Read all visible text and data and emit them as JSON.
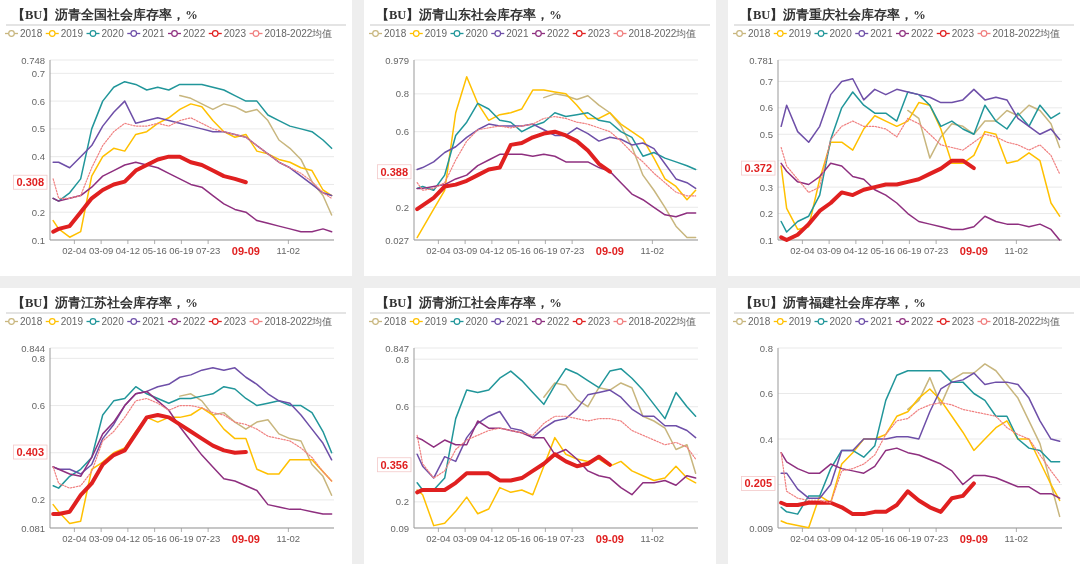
{
  "chart_data": [
    {
      "type": "line",
      "title": "【BU】沥青全国社会库存率，%",
      "legend": "top",
      "grid": "y",
      "x": [
        "--01-08",
        "--01-15",
        "--01-29",
        "--02-12",
        "--02-26",
        "--03-11",
        "--03-25",
        "--04-08",
        "--04-22",
        "--05-06",
        "--05-20",
        "--06-03",
        "--06-17",
        "--07-01",
        "--07-15",
        "--07-29",
        "--08-12",
        "--08-26",
        "--09-09",
        "--09-23",
        "--10-07",
        "--10-21",
        "--11-04",
        "--11-18",
        "--12-02",
        "--12-16",
        "--12-27"
      ],
      "xlim": [
        "--01-04",
        "--12-30"
      ],
      "xticks": [
        {
          "value": "--02-04",
          "label": "02-04"
        },
        {
          "value": "--03-09",
          "label": "03-09"
        },
        {
          "value": "--04-12",
          "label": "04-12"
        },
        {
          "value": "--05-16",
          "label": "05-16"
        },
        {
          "value": "--06-19",
          "label": "06-19"
        },
        {
          "value": "--07-23",
          "label": "07-23"
        },
        {
          "value": "--11-02",
          "label": "11-02"
        }
      ],
      "ylim": [
        0.1,
        0.748
      ],
      "yticks": [
        0.1,
        0.2,
        {
          "value": 0.3,
          "label": null
        },
        0.4,
        0.5,
        0.6,
        0.7,
        0.748
      ],
      "series": [
        {
          "name": "2018",
          "color": "#c8b67e",
          "values": [
            null,
            null,
            null,
            null,
            null,
            null,
            null,
            null,
            null,
            null,
            null,
            null,
            0.62,
            0.61,
            0.59,
            0.57,
            0.59,
            0.58,
            0.56,
            0.57,
            0.53,
            0.46,
            0.43,
            0.39,
            0.31,
            0.26,
            0.19
          ]
        },
        {
          "name": "2019",
          "color": "#ffc000",
          "values": [
            0.17,
            0.14,
            0.11,
            0.13,
            0.33,
            0.4,
            0.43,
            0.42,
            0.48,
            0.49,
            0.52,
            0.54,
            0.57,
            0.59,
            0.58,
            0.53,
            0.49,
            0.47,
            0.48,
            0.42,
            0.41,
            0.39,
            0.38,
            0.36,
            0.35,
            0.28,
            0.26
          ]
        },
        {
          "name": "2020",
          "color": "#21969a",
          "values": [
            0.25,
            0.24,
            0.27,
            0.32,
            0.5,
            0.6,
            0.65,
            0.67,
            0.66,
            0.64,
            0.65,
            0.64,
            0.66,
            0.66,
            0.66,
            0.65,
            0.64,
            0.62,
            0.6,
            0.6,
            0.55,
            0.53,
            0.51,
            0.5,
            0.49,
            0.46,
            0.43
          ]
        },
        {
          "name": "2021",
          "color": "#6e4fa8",
          "values": [
            0.38,
            0.38,
            0.36,
            0.4,
            0.44,
            0.51,
            0.56,
            0.6,
            0.52,
            0.53,
            0.54,
            0.53,
            0.52,
            0.51,
            0.5,
            0.49,
            0.49,
            0.48,
            0.47,
            0.44,
            0.41,
            0.38,
            0.36,
            0.33,
            0.3,
            0.27,
            0.26
          ]
        },
        {
          "name": "2022",
          "color": "#8e2f7f",
          "values": [
            0.25,
            0.24,
            0.25,
            0.26,
            0.29,
            0.33,
            0.35,
            0.37,
            0.38,
            0.37,
            0.36,
            0.34,
            0.32,
            0.3,
            0.29,
            0.26,
            0.23,
            0.21,
            0.2,
            0.17,
            0.16,
            0.15,
            0.14,
            0.13,
            0.13,
            0.14,
            0.13
          ]
        },
        {
          "name": "2023",
          "color": "#e02020",
          "values": [
            0.13,
            0.14,
            0.15,
            0.2,
            0.25,
            0.28,
            0.3,
            0.31,
            0.35,
            0.37,
            0.39,
            0.4,
            0.4,
            0.38,
            0.37,
            0.35,
            0.33,
            0.32,
            0.308,
            null,
            null,
            null,
            null,
            null,
            null,
            null,
            null
          ]
        },
        {
          "name": "2018-2022均值",
          "color": "#f08080",
          "line_style": "dotted",
          "values": [
            0.32,
            0.25,
            0.25,
            0.26,
            0.36,
            0.44,
            0.49,
            0.52,
            0.51,
            0.51,
            0.52,
            0.51,
            0.53,
            0.54,
            0.52,
            0.5,
            0.49,
            0.48,
            0.47,
            0.44,
            0.41,
            0.38,
            0.36,
            0.34,
            0.31,
            0.27,
            0.25
          ]
        }
      ],
      "annotations": [
        "0.308",
        "09-09"
      ]
    },
    {
      "type": "line",
      "title": "【BU】沥青山东社会库存率，%",
      "legend": "top",
      "grid": "y",
      "x": [
        "--01-08",
        "--01-15",
        "--01-29",
        "--02-12",
        "--02-26",
        "--03-11",
        "--03-25",
        "--04-08",
        "--04-22",
        "--05-06",
        "--05-20",
        "--06-03",
        "--06-17",
        "--07-01",
        "--07-15",
        "--07-29",
        "--08-12",
        "--08-26",
        "--09-09",
        "--09-23",
        "--10-07",
        "--10-21",
        "--11-04",
        "--11-18",
        "--12-02",
        "--12-16",
        "--12-27"
      ],
      "xlim": [
        "--01-04",
        "--12-30"
      ],
      "xticks": [
        {
          "value": "--02-04",
          "label": "02-04"
        },
        {
          "value": "--03-09",
          "label": "03-09"
        },
        {
          "value": "--04-12",
          "label": "04-12"
        },
        {
          "value": "--05-16",
          "label": "05-16"
        },
        {
          "value": "--06-19",
          "label": "06-19"
        },
        {
          "value": "--07-23",
          "label": "07-23"
        },
        {
          "value": "--11-02",
          "label": "11-02"
        }
      ],
      "ylim": [
        0.027,
        0.979
      ],
      "yticks": [
        0.027,
        0.2,
        {
          "value": 0.4,
          "label": null
        },
        0.6,
        0.8,
        0.979
      ],
      "series": [
        {
          "name": "2018",
          "color": "#c8b67e",
          "values": [
            null,
            null,
            null,
            null,
            null,
            null,
            null,
            null,
            null,
            null,
            null,
            null,
            0.78,
            0.8,
            0.79,
            0.77,
            0.79,
            0.74,
            0.7,
            0.63,
            0.52,
            0.37,
            0.29,
            0.2,
            0.1,
            0.04,
            0.04
          ]
        },
        {
          "name": "2019",
          "color": "#ffc000",
          "values": [
            0.04,
            0.09,
            0.19,
            0.29,
            0.7,
            0.89,
            0.75,
            0.66,
            0.69,
            0.7,
            0.72,
            0.82,
            0.82,
            0.81,
            0.8,
            0.74,
            0.67,
            0.67,
            0.7,
            0.64,
            0.6,
            0.56,
            0.46,
            0.35,
            0.31,
            0.24,
            0.29
          ]
        },
        {
          "name": "2020",
          "color": "#21969a",
          "values": [
            0.3,
            0.31,
            0.29,
            0.37,
            0.58,
            0.65,
            0.75,
            0.72,
            0.66,
            0.65,
            0.6,
            0.63,
            0.65,
            0.7,
            0.68,
            0.69,
            0.7,
            0.66,
            0.65,
            0.6,
            0.57,
            0.47,
            0.49,
            0.46,
            0.44,
            0.42,
            0.4
          ]
        },
        {
          "name": "2021",
          "color": "#6e4fa8",
          "values": [
            0.4,
            0.41,
            0.44,
            0.49,
            0.52,
            0.57,
            0.61,
            0.64,
            0.63,
            0.63,
            0.63,
            0.64,
            0.61,
            0.58,
            0.58,
            0.62,
            0.59,
            0.55,
            0.57,
            0.56,
            0.53,
            0.54,
            0.51,
            0.43,
            0.35,
            0.33,
            0.3
          ]
        },
        {
          "name": "2022",
          "color": "#8e2f7f",
          "values": [
            0.3,
            0.3,
            0.31,
            0.32,
            0.35,
            0.37,
            0.42,
            0.45,
            0.48,
            0.48,
            0.48,
            0.47,
            0.48,
            0.47,
            0.44,
            0.44,
            0.44,
            0.41,
            0.39,
            0.33,
            0.27,
            0.24,
            0.2,
            0.16,
            0.15,
            0.17,
            0.17
          ]
        },
        {
          "name": "2023",
          "color": "#e02020",
          "values": [
            0.19,
            0.21,
            0.25,
            0.31,
            0.32,
            0.34,
            0.37,
            0.4,
            0.41,
            0.53,
            0.54,
            0.57,
            0.59,
            0.6,
            0.58,
            0.55,
            0.5,
            0.43,
            0.388,
            null,
            null,
            null,
            null,
            null,
            null,
            null,
            null
          ]
        },
        {
          "name": "2018-2022均值",
          "color": "#f08080",
          "line_style": "dotted",
          "values": [
            0.33,
            0.29,
            0.3,
            0.33,
            0.45,
            0.55,
            0.61,
            0.62,
            0.63,
            0.62,
            0.63,
            0.64,
            0.67,
            0.68,
            0.67,
            0.65,
            0.64,
            0.62,
            0.6,
            0.55,
            0.49,
            0.44,
            0.38,
            0.33,
            0.28,
            0.26,
            0.26
          ]
        }
      ],
      "annotations": [
        "0.388",
        "09-09"
      ]
    },
    {
      "type": "line",
      "title": "【BU】沥青重庆社会库存率，%",
      "legend": "top",
      "grid": "y",
      "x": [
        "--01-08",
        "--01-15",
        "--01-29",
        "--02-12",
        "--02-26",
        "--03-11",
        "--03-25",
        "--04-08",
        "--04-22",
        "--05-06",
        "--05-20",
        "--06-03",
        "--06-17",
        "--07-01",
        "--07-15",
        "--07-29",
        "--08-12",
        "--08-26",
        "--09-09",
        "--09-23",
        "--10-07",
        "--10-21",
        "--11-04",
        "--11-18",
        "--12-02",
        "--12-16",
        "--12-27"
      ],
      "xlim": [
        "--01-04",
        "--12-30"
      ],
      "xticks": [
        {
          "value": "--02-04",
          "label": "02-04"
        },
        {
          "value": "--03-09",
          "label": "03-09"
        },
        {
          "value": "--04-12",
          "label": "04-12"
        },
        {
          "value": "--05-16",
          "label": "05-16"
        },
        {
          "value": "--06-19",
          "label": "06-19"
        },
        {
          "value": "--07-23",
          "label": "07-23"
        },
        {
          "value": "--11-02",
          "label": "11-02"
        }
      ],
      "ylim": [
        0.1,
        0.781
      ],
      "yticks": [
        0.1,
        0.2,
        0.3,
        {
          "value": 0.4,
          "label": null
        },
        0.5,
        0.6,
        0.7,
        0.781
      ],
      "series": [
        {
          "name": "2018",
          "color": "#c8b67e",
          "values": [
            null,
            null,
            null,
            null,
            null,
            null,
            null,
            null,
            null,
            null,
            null,
            null,
            0.59,
            0.56,
            0.41,
            0.49,
            0.54,
            0.53,
            0.5,
            0.55,
            0.55,
            0.59,
            0.57,
            0.61,
            0.59,
            0.54,
            0.45
          ]
        },
        {
          "name": "2019",
          "color": "#ffc000",
          "values": [
            0.38,
            0.22,
            0.14,
            0.15,
            0.33,
            0.47,
            0.47,
            0.44,
            0.52,
            0.57,
            0.55,
            0.53,
            0.55,
            0.62,
            0.61,
            0.52,
            0.39,
            0.39,
            0.42,
            0.51,
            0.5,
            0.39,
            0.4,
            0.43,
            0.4,
            0.24,
            0.19
          ]
        },
        {
          "name": "2020",
          "color": "#21969a",
          "values": [
            0.17,
            0.13,
            0.17,
            0.19,
            0.27,
            0.48,
            0.6,
            0.66,
            0.61,
            0.58,
            0.58,
            0.55,
            0.66,
            0.65,
            0.61,
            0.53,
            0.55,
            0.52,
            0.5,
            0.61,
            0.55,
            0.52,
            0.58,
            0.53,
            0.61,
            0.56,
            0.58
          ]
        },
        {
          "name": "2021",
          "color": "#6e4fa8",
          "values": [
            0.53,
            0.61,
            0.51,
            0.47,
            0.53,
            0.65,
            0.7,
            0.71,
            0.63,
            0.67,
            0.65,
            0.67,
            0.66,
            0.65,
            0.64,
            0.62,
            0.62,
            0.63,
            0.67,
            0.63,
            0.64,
            0.63,
            0.56,
            0.53,
            0.5,
            0.52,
            0.48
          ]
        },
        {
          "name": "2022",
          "color": "#8e2f7f",
          "values": [
            0.39,
            0.36,
            0.32,
            0.31,
            0.34,
            0.39,
            0.38,
            0.34,
            0.33,
            0.29,
            0.27,
            0.24,
            0.2,
            0.17,
            0.16,
            0.15,
            0.14,
            0.14,
            0.15,
            0.19,
            0.17,
            0.16,
            0.16,
            0.15,
            0.16,
            0.14,
            0.1
          ]
        },
        {
          "name": "2023",
          "color": "#e02020",
          "values": [
            0.11,
            0.1,
            0.12,
            0.16,
            0.21,
            0.24,
            0.28,
            0.27,
            0.29,
            0.3,
            0.31,
            0.31,
            0.32,
            0.33,
            0.35,
            0.37,
            0.4,
            0.4,
            0.372,
            null,
            null,
            null,
            null,
            null,
            null,
            null,
            null
          ]
        },
        {
          "name": "2018-2022均值",
          "color": "#f08080",
          "line_style": "dotted",
          "values": [
            0.45,
            0.38,
            0.33,
            0.28,
            0.3,
            0.48,
            0.53,
            0.55,
            0.53,
            0.53,
            0.52,
            0.49,
            0.56,
            0.54,
            0.5,
            0.46,
            0.45,
            0.44,
            0.47,
            0.5,
            0.49,
            0.47,
            0.46,
            0.44,
            0.46,
            0.42,
            0.35
          ]
        }
      ],
      "annotations": [
        "0.372",
        "09-09"
      ]
    },
    {
      "type": "line",
      "title": "【BU】沥青江苏社会库存率，%",
      "legend": "top",
      "grid": "y",
      "x": [
        "--01-08",
        "--01-15",
        "--01-29",
        "--02-12",
        "--02-26",
        "--03-11",
        "--03-25",
        "--04-08",
        "--04-22",
        "--05-06",
        "--05-20",
        "--06-03",
        "--06-17",
        "--07-01",
        "--07-15",
        "--07-29",
        "--08-12",
        "--08-26",
        "--09-09",
        "--09-23",
        "--10-07",
        "--10-21",
        "--11-04",
        "--11-18",
        "--12-02",
        "--12-16",
        "--12-27"
      ],
      "xlim": [
        "--01-04",
        "--12-30"
      ],
      "xticks": [
        {
          "value": "--02-04",
          "label": "02-04"
        },
        {
          "value": "--03-09",
          "label": "03-09"
        },
        {
          "value": "--04-12",
          "label": "04-12"
        },
        {
          "value": "--05-16",
          "label": "05-16"
        },
        {
          "value": "--06-19",
          "label": "06-19"
        },
        {
          "value": "--07-23",
          "label": "07-23"
        },
        {
          "value": "--11-02",
          "label": "11-02"
        }
      ],
      "ylim": [
        0.081,
        0.844
      ],
      "yticks": [
        0.081,
        0.2,
        {
          "value": 0.4,
          "label": null
        },
        0.6,
        0.8,
        0.844
      ],
      "series": [
        {
          "name": "2018",
          "color": "#c8b67e",
          "values": [
            null,
            null,
            null,
            null,
            null,
            null,
            null,
            null,
            null,
            null,
            null,
            null,
            0.64,
            0.65,
            0.62,
            0.56,
            0.57,
            0.53,
            0.5,
            0.53,
            0.54,
            0.48,
            0.46,
            0.45,
            0.35,
            0.3,
            0.22
          ]
        },
        {
          "name": "2019",
          "color": "#ffc000",
          "values": [
            0.18,
            0.15,
            0.1,
            0.11,
            0.33,
            0.36,
            0.4,
            0.42,
            0.49,
            0.55,
            0.53,
            0.55,
            0.55,
            0.56,
            0.59,
            0.56,
            0.5,
            0.46,
            0.46,
            0.33,
            0.31,
            0.31,
            0.37,
            0.37,
            0.37,
            0.32,
            0.28
          ]
        },
        {
          "name": "2020",
          "color": "#21969a",
          "values": [
            0.26,
            0.25,
            0.3,
            0.33,
            0.38,
            0.56,
            0.62,
            0.63,
            0.68,
            0.65,
            0.63,
            0.61,
            0.63,
            0.63,
            0.64,
            0.65,
            0.68,
            0.67,
            0.63,
            0.6,
            0.61,
            0.62,
            0.6,
            0.6,
            0.57,
            0.49,
            0.4
          ]
        },
        {
          "name": "2021",
          "color": "#6e4fa8",
          "values": [
            0.34,
            0.33,
            0.33,
            0.31,
            0.35,
            0.46,
            0.52,
            0.6,
            0.65,
            0.66,
            0.68,
            0.69,
            0.72,
            0.73,
            0.75,
            0.76,
            0.75,
            0.76,
            0.72,
            0.69,
            0.65,
            0.62,
            0.61,
            0.56,
            0.5,
            0.44,
            0.37
          ]
        },
        {
          "name": "2022",
          "color": "#8e2f7f",
          "values": [
            0.34,
            0.33,
            0.31,
            0.3,
            0.38,
            0.48,
            0.53,
            0.6,
            0.65,
            0.66,
            0.62,
            0.58,
            0.51,
            0.45,
            0.39,
            0.34,
            0.29,
            0.28,
            0.26,
            0.24,
            0.18,
            0.17,
            0.16,
            0.16,
            0.15,
            0.14,
            0.14
          ]
        },
        {
          "name": "2023",
          "color": "#e02020",
          "values": [
            0.14,
            0.14,
            0.15,
            0.22,
            0.27,
            0.35,
            0.39,
            0.41,
            0.48,
            0.55,
            0.56,
            0.55,
            0.52,
            0.49,
            0.46,
            0.43,
            0.41,
            0.4,
            0.403,
            null,
            null,
            null,
            null,
            null,
            null,
            null,
            null
          ]
        },
        {
          "name": "2018-2022均值",
          "color": "#f08080",
          "line_style": "dotted",
          "values": [
            0.34,
            0.27,
            0.25,
            0.26,
            0.32,
            0.45,
            0.49,
            0.55,
            0.62,
            0.63,
            0.61,
            0.58,
            0.6,
            0.6,
            0.59,
            0.57,
            0.56,
            0.53,
            0.52,
            0.5,
            0.47,
            0.46,
            0.45,
            0.42,
            0.38,
            0.32,
            0.28
          ]
        }
      ],
      "annotations": [
        "0.403",
        "09-09"
      ]
    },
    {
      "type": "line",
      "title": "【BU】沥青浙江社会库存率，%",
      "legend": "top",
      "grid": "y",
      "x": [
        "--01-08",
        "--01-15",
        "--01-29",
        "--02-12",
        "--02-26",
        "--03-11",
        "--03-25",
        "--04-08",
        "--04-22",
        "--05-06",
        "--05-20",
        "--06-03",
        "--06-17",
        "--07-01",
        "--07-15",
        "--07-29",
        "--08-12",
        "--08-26",
        "--09-09",
        "--09-23",
        "--10-07",
        "--10-21",
        "--11-04",
        "--11-18",
        "--12-02",
        "--12-16",
        "--12-27"
      ],
      "xlim": [
        "--01-04",
        "--12-30"
      ],
      "xticks": [
        {
          "value": "--02-04",
          "label": "02-04"
        },
        {
          "value": "--03-09",
          "label": "03-09"
        },
        {
          "value": "--04-12",
          "label": "04-12"
        },
        {
          "value": "--05-16",
          "label": "05-16"
        },
        {
          "value": "--06-19",
          "label": "06-19"
        },
        {
          "value": "--07-23",
          "label": "07-23"
        },
        {
          "value": "--11-02",
          "label": "11-02"
        }
      ],
      "ylim": [
        0.09,
        0.847
      ],
      "yticks": [
        0.09,
        0.2,
        {
          "value": 0.4,
          "label": null
        },
        0.6,
        0.8,
        0.847
      ],
      "series": [
        {
          "name": "2018",
          "color": "#c8b67e",
          "values": [
            null,
            null,
            null,
            null,
            null,
            null,
            null,
            null,
            null,
            null,
            null,
            null,
            0.64,
            0.7,
            0.69,
            0.63,
            0.6,
            0.68,
            0.67,
            0.7,
            0.68,
            0.56,
            0.54,
            0.51,
            0.42,
            0.44,
            0.32
          ]
        },
        {
          "name": "2019",
          "color": "#ffc000",
          "values": [
            0.25,
            0.23,
            0.1,
            0.11,
            0.16,
            0.22,
            0.15,
            0.17,
            0.26,
            0.24,
            0.25,
            0.23,
            0.35,
            0.47,
            0.4,
            0.38,
            0.37,
            0.38,
            0.35,
            0.37,
            0.33,
            0.31,
            0.29,
            0.3,
            0.35,
            0.3,
            0.28
          ]
        },
        {
          "name": "2020",
          "color": "#21969a",
          "values": [
            0.28,
            0.25,
            0.25,
            0.3,
            0.55,
            0.67,
            0.66,
            0.67,
            0.72,
            0.75,
            0.71,
            0.66,
            0.61,
            0.69,
            0.76,
            0.74,
            0.71,
            0.68,
            0.75,
            0.76,
            0.72,
            0.67,
            0.61,
            0.55,
            0.66,
            0.6,
            0.56
          ]
        },
        {
          "name": "2021",
          "color": "#6e4fa8",
          "values": [
            0.4,
            0.35,
            0.3,
            0.39,
            0.37,
            0.47,
            0.53,
            0.56,
            0.58,
            0.51,
            0.5,
            0.47,
            0.51,
            0.54,
            0.55,
            0.59,
            0.65,
            0.66,
            0.67,
            0.64,
            0.59,
            0.56,
            0.56,
            0.52,
            0.52,
            0.5,
            0.47
          ]
        },
        {
          "name": "2022",
          "color": "#8e2f7f",
          "values": [
            0.47,
            0.46,
            0.43,
            0.46,
            0.44,
            0.44,
            0.54,
            0.51,
            0.51,
            0.5,
            0.49,
            0.47,
            0.47,
            0.4,
            0.42,
            0.38,
            0.33,
            0.31,
            0.3,
            0.26,
            0.23,
            0.28,
            0.28,
            0.29,
            0.27,
            0.31,
            0.3
          ]
        },
        {
          "name": "2023",
          "color": "#e02020",
          "values": [
            0.24,
            0.25,
            0.25,
            0.25,
            0.28,
            0.32,
            0.32,
            0.32,
            0.29,
            0.29,
            0.3,
            0.33,
            0.36,
            0.4,
            0.37,
            0.35,
            0.36,
            0.39,
            0.356,
            null,
            null,
            null,
            null,
            null,
            null,
            null,
            null
          ]
        },
        {
          "name": "2018-2022均值",
          "color": "#f08080",
          "line_style": "dotted",
          "values": [
            0.48,
            0.36,
            0.3,
            0.33,
            0.42,
            0.46,
            0.48,
            0.5,
            0.51,
            0.5,
            0.49,
            0.48,
            0.53,
            0.56,
            0.56,
            0.55,
            0.54,
            0.55,
            0.55,
            0.54,
            0.5,
            0.48,
            0.46,
            0.44,
            0.45,
            0.43,
            0.38
          ]
        }
      ],
      "annotations": [
        "0.356",
        "09-09"
      ]
    },
    {
      "type": "line",
      "title": "【BU】沥青福建社会库存率，%",
      "legend": "top",
      "grid": "y",
      "x": [
        "--01-08",
        "--01-15",
        "--01-29",
        "--02-12",
        "--02-26",
        "--03-11",
        "--03-25",
        "--04-08",
        "--04-22",
        "--05-06",
        "--05-20",
        "--06-03",
        "--06-17",
        "--07-01",
        "--07-15",
        "--07-29",
        "--08-12",
        "--08-26",
        "--09-09",
        "--09-23",
        "--10-07",
        "--10-21",
        "--11-04",
        "--11-18",
        "--12-02",
        "--12-16",
        "--12-27"
      ],
      "xlim": [
        "--01-04",
        "--12-30"
      ],
      "xticks": [
        {
          "value": "--02-04",
          "label": "02-04"
        },
        {
          "value": "--03-09",
          "label": "03-09"
        },
        {
          "value": "--04-12",
          "label": "04-12"
        },
        {
          "value": "--05-16",
          "label": "05-16"
        },
        {
          "value": "--06-19",
          "label": "06-19"
        },
        {
          "value": "--07-23",
          "label": "07-23"
        },
        {
          "value": "--11-02",
          "label": "11-02"
        }
      ],
      "ylim": [
        0.009,
        0.8
      ],
      "yticks": [
        0.009,
        {
          "value": 0.2,
          "label": null
        },
        0.4,
        0.6,
        0.8
      ],
      "series": [
        {
          "name": "2018",
          "color": "#c8b67e",
          "values": [
            null,
            null,
            null,
            null,
            null,
            null,
            null,
            null,
            null,
            null,
            null,
            null,
            0.53,
            0.57,
            0.67,
            0.55,
            0.66,
            0.69,
            0.69,
            0.73,
            0.7,
            0.64,
            0.58,
            0.48,
            0.38,
            0.2,
            0.06
          ]
        },
        {
          "name": "2019",
          "color": "#ffc000",
          "values": [
            0.04,
            0.03,
            0.02,
            0.01,
            0.15,
            0.12,
            0.29,
            0.34,
            0.4,
            0.4,
            0.42,
            0.5,
            0.52,
            0.58,
            0.62,
            0.57,
            0.5,
            0.43,
            0.35,
            0.4,
            0.45,
            0.48,
            0.4,
            0.4,
            0.3,
            0.2,
            0.13
          ]
        },
        {
          "name": "2020",
          "color": "#21969a",
          "values": [
            0.1,
            0.08,
            0.07,
            0.15,
            0.15,
            0.27,
            0.35,
            0.35,
            0.32,
            0.37,
            0.57,
            0.68,
            0.7,
            0.7,
            0.7,
            0.7,
            0.65,
            0.65,
            0.6,
            0.57,
            0.5,
            0.5,
            0.4,
            0.36,
            0.35,
            0.3,
            0.3
          ]
        },
        {
          "name": "2021",
          "color": "#6e4fa8",
          "values": [
            0.25,
            0.25,
            0.18,
            0.14,
            0.14,
            0.2,
            0.35,
            0.35,
            0.4,
            0.4,
            0.4,
            0.41,
            0.41,
            0.4,
            0.52,
            0.62,
            0.65,
            0.66,
            0.69,
            0.64,
            0.65,
            0.65,
            0.64,
            0.58,
            0.48,
            0.4,
            0.39
          ]
        },
        {
          "name": "2022",
          "color": "#8e2f7f",
          "values": [
            0.34,
            0.3,
            0.27,
            0.25,
            0.25,
            0.29,
            0.27,
            0.26,
            0.25,
            0.28,
            0.35,
            0.36,
            0.34,
            0.33,
            0.31,
            0.29,
            0.26,
            0.2,
            0.24,
            0.24,
            0.23,
            0.21,
            0.19,
            0.19,
            0.16,
            0.16,
            0.14
          ]
        },
        {
          "name": "2023",
          "color": "#e02020",
          "values": [
            0.12,
            0.11,
            0.11,
            0.12,
            0.12,
            0.12,
            0.1,
            0.07,
            0.07,
            0.08,
            0.08,
            0.11,
            0.17,
            0.13,
            0.1,
            0.08,
            0.14,
            0.15,
            0.205,
            null,
            null,
            null,
            null,
            null,
            null,
            null,
            null
          ]
        },
        {
          "name": "2018-2022均值",
          "color": "#f08080",
          "line_style": "dotted",
          "values": [
            0.34,
            0.17,
            0.14,
            0.13,
            0.13,
            0.12,
            0.26,
            0.27,
            0.29,
            0.33,
            0.42,
            0.48,
            0.49,
            0.53,
            0.55,
            0.56,
            0.55,
            0.53,
            0.52,
            0.51,
            0.5,
            0.45,
            0.42,
            0.4,
            0.33,
            0.26,
            0.21
          ]
        }
      ],
      "annotations": [
        "0.205",
        "09-09"
      ]
    }
  ]
}
